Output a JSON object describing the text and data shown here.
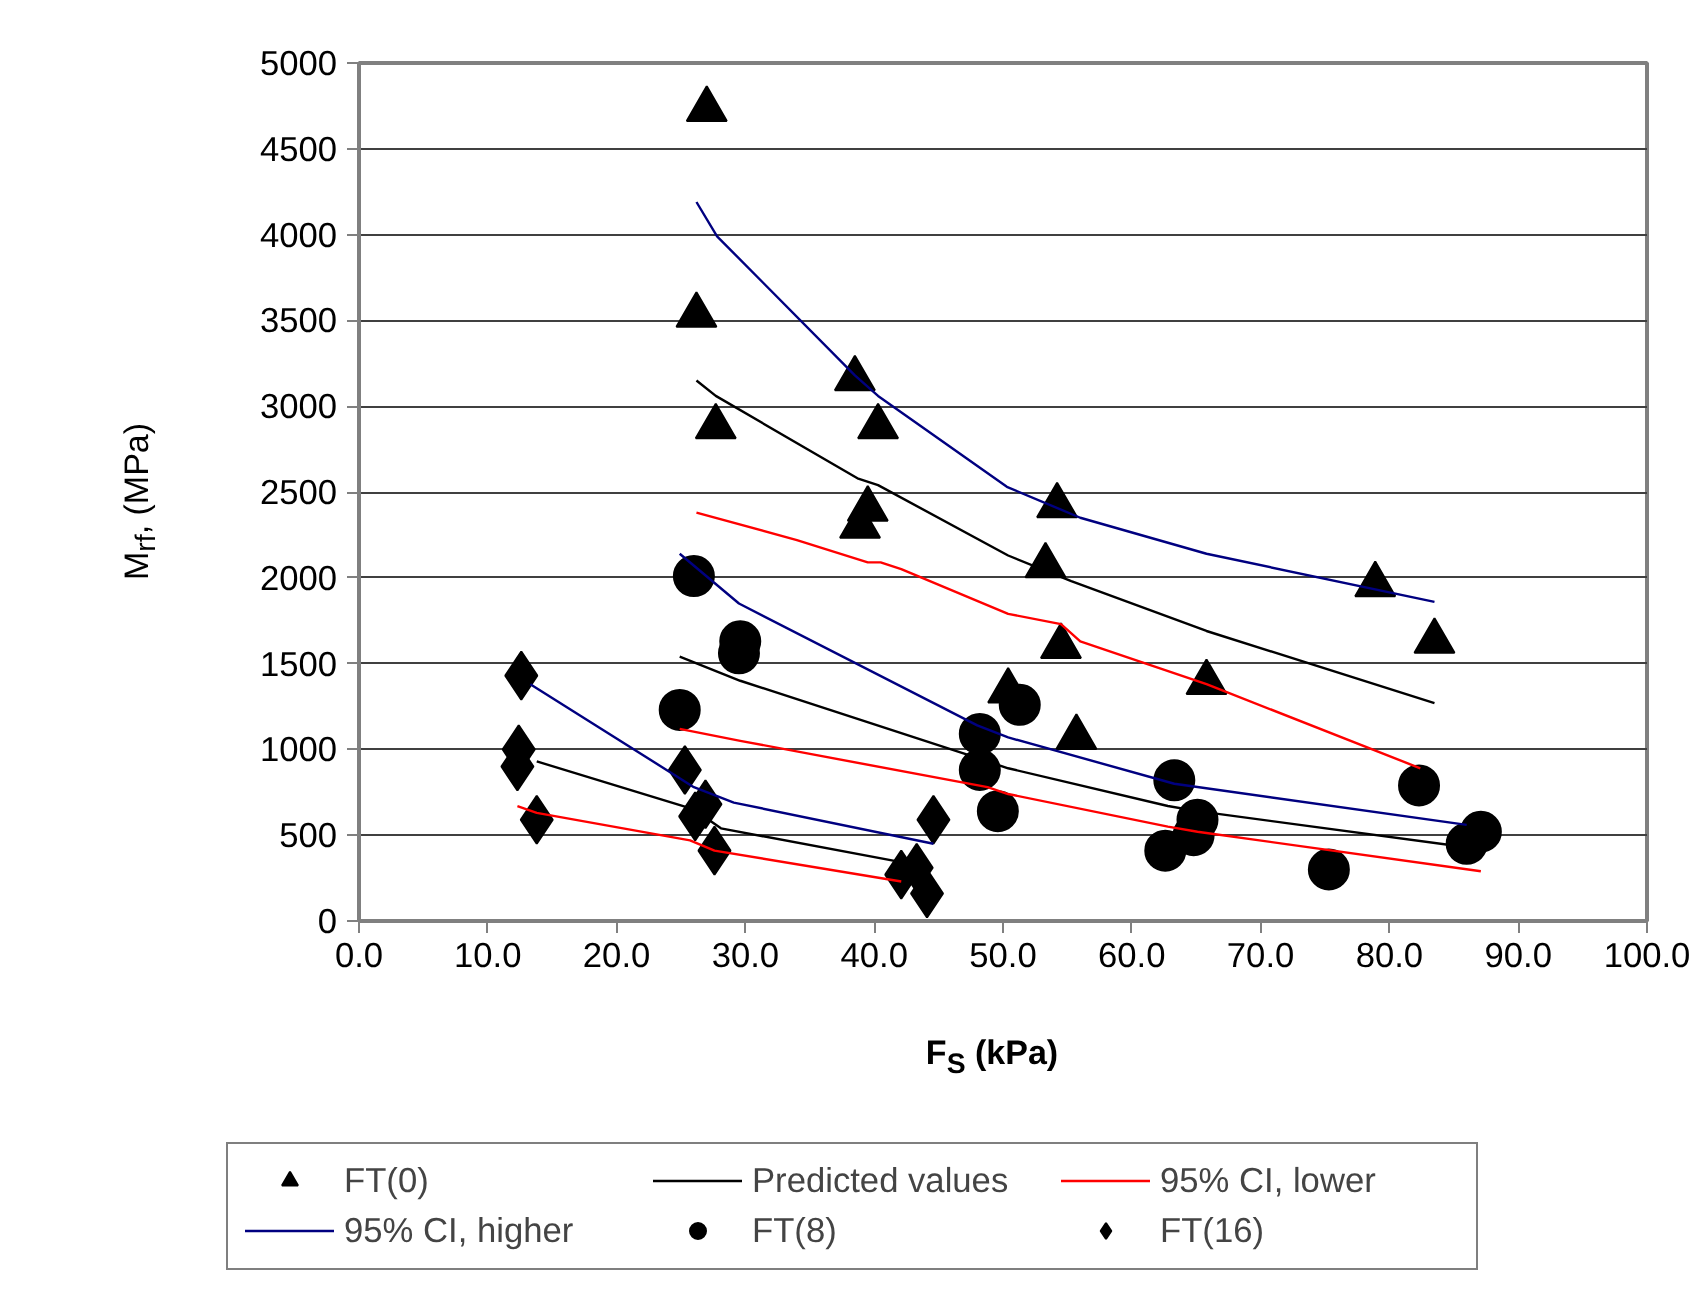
{
  "chart_data": {
    "type": "scatter",
    "xlabel": "F$_{S}$ (kPa)",
    "ylabel": "M$_{rf}$, (MPa)",
    "xlim": [
      0,
      100
    ],
    "ylim": [
      0,
      5000
    ],
    "xticks": [
      {
        "value": 0,
        "label": "0.0"
      },
      {
        "value": 10,
        "label": "10.0"
      },
      {
        "value": 20,
        "label": "20.0"
      },
      {
        "value": 30,
        "label": "30.0"
      },
      {
        "value": 40,
        "label": "40.0"
      },
      {
        "value": 50,
        "label": "50.0"
      },
      {
        "value": 60,
        "label": "60.0"
      },
      {
        "value": 70,
        "label": "70.0"
      },
      {
        "value": 80,
        "label": "80.0"
      },
      {
        "value": 90,
        "label": "90.0"
      },
      {
        "value": 100,
        "label": "100.0"
      }
    ],
    "yticks": [
      0,
      500,
      1000,
      1500,
      2000,
      2500,
      3000,
      3500,
      4000,
      4500,
      5000
    ],
    "grid": "y",
    "legend": "bottom",
    "series": [
      {
        "name": "FT(0)",
        "color": "#000000",
        "marker": "triangle",
        "x": [
          27.0,
          26.2,
          27.7,
          38.5,
          40.3,
          39.5,
          38.9,
          54.2,
          53.3,
          54.5,
          50.4,
          55.7,
          65.8,
          78.9,
          83.5
        ],
        "values": [
          4730,
          3530,
          2880,
          3160,
          2880,
          2400,
          2300,
          2420,
          2070,
          1600,
          1340,
          1070,
          1390,
          1960,
          1630
        ]
      },
      {
        "type": "line",
        "name": "Predicted values",
        "color": "#000000",
        "x": [
          26.2,
          27.7,
          38.7,
          40.3,
          50.4,
          55.3,
          65.8,
          83.5,
          null,
          24.9,
          29.6,
          48.0,
          50.4,
          62.8,
          65.1,
          86.0,
          null,
          13.8,
          26.0,
          28.1,
          42.3
        ],
        "values": [
          3150,
          3060,
          2580,
          2540,
          2130,
          1980,
          1690,
          1270,
          null,
          1540,
          1400,
          950,
          890,
          670,
          640,
          430,
          null,
          930,
          650,
          540,
          340
        ]
      },
      {
        "type": "line",
        "name": "95% CI, lower",
        "color": "#ff0000",
        "x": [
          26.2,
          34.0,
          39.5,
          40.5,
          42.1,
          50.4,
          54.5,
          56.0,
          65.8,
          82.4,
          null,
          24.9,
          29.6,
          48.8,
          50.4,
          62.8,
          65.1,
          87.1,
          null,
          12.3,
          13.8,
          25.7,
          27.6,
          42.1
        ],
        "values": [
          2380,
          2220,
          2090,
          2090,
          2050,
          1790,
          1730,
          1630,
          1380,
          890,
          null,
          1120,
          1050,
          780,
          740,
          550,
          520,
          290,
          null,
          670,
          630,
          470,
          410,
          230
        ]
      },
      {
        "type": "line",
        "name": "95% CI, higher",
        "color": "#000080",
        "x": [
          26.2,
          27.8,
          38.5,
          40.3,
          50.3,
          56.0,
          65.8,
          83.5,
          null,
          24.9,
          29.5,
          48.0,
          50.4,
          63.3,
          86.0,
          null,
          13.3,
          26.0,
          29.1,
          44.6
        ],
        "values": [
          4190,
          3990,
          3180,
          3060,
          2530,
          2350,
          2140,
          1860,
          null,
          2140,
          1850,
          1140,
          1070,
          800,
          560,
          null,
          1380,
          780,
          690,
          450
        ]
      },
      {
        "name": "FT(8)",
        "color": "#000000",
        "marker": "circle",
        "x": [
          26.0,
          29.6,
          29.5,
          24.9,
          51.3,
          48.2,
          48.2,
          49.6,
          63.3,
          65.1,
          64.8,
          62.6,
          75.3,
          82.3,
          87.1,
          86.0
        ],
        "values": [
          2010,
          1630,
          1560,
          1230,
          1260,
          1090,
          880,
          640,
          820,
          590,
          500,
          410,
          300,
          790,
          520,
          450
        ]
      },
      {
        "name": "FT(16)",
        "color": "#000000",
        "marker": "diamond",
        "x": [
          12.6,
          12.4,
          12.3,
          13.8,
          25.3,
          26.9,
          26.1,
          27.6,
          44.6,
          42.1,
          43.3,
          44.1
        ],
        "values": [
          1430,
          1000,
          900,
          590,
          880,
          680,
          610,
          410,
          590,
          270,
          310,
          160
        ]
      }
    ]
  }
}
